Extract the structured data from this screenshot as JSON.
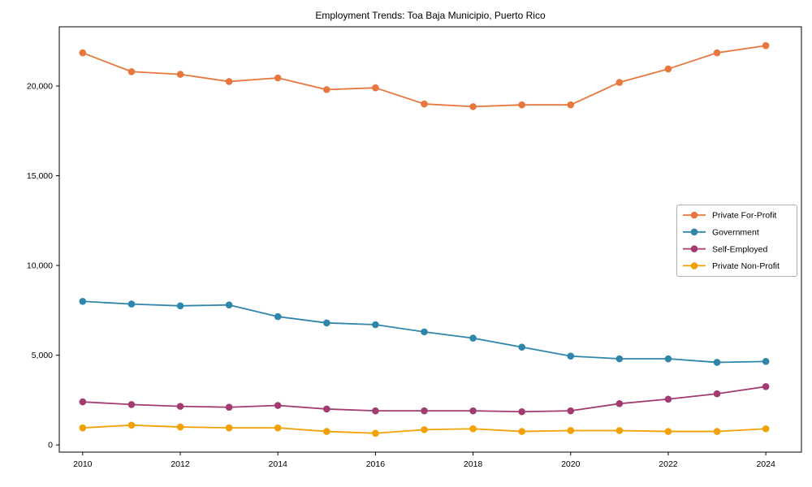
{
  "chart_data": {
    "type": "line",
    "title": "Employment Trends: Toa Baja Municipio, Puerto Rico",
    "xlabel": "",
    "ylabel": "",
    "x": [
      2010,
      2011,
      2012,
      2013,
      2014,
      2015,
      2016,
      2017,
      2018,
      2019,
      2020,
      2021,
      2022,
      2023,
      2024
    ],
    "series": [
      {
        "name": "Private For-Profit",
        "color": "#E8773E",
        "values": [
          21850,
          20800,
          20650,
          20250,
          20450,
          19800,
          19900,
          19000,
          18850,
          18950,
          18950,
          20200,
          20950,
          21850,
          22250
        ]
      },
      {
        "name": "Government",
        "color": "#2E86AB",
        "values": [
          8000,
          7850,
          7750,
          7800,
          7150,
          6800,
          6700,
          6300,
          5950,
          5450,
          4950,
          4800,
          4800,
          4600,
          4650
        ]
      },
      {
        "name": "Self-Employed",
        "color": "#A23B72",
        "values": [
          2400,
          2250,
          2150,
          2100,
          2200,
          2000,
          1900,
          1900,
          1900,
          1850,
          1900,
          2300,
          2550,
          2850,
          3250
        ]
      },
      {
        "name": "Private Non-Profit",
        "color": "#F2A104",
        "values": [
          950,
          1100,
          1000,
          950,
          950,
          750,
          650,
          850,
          900,
          750,
          800,
          800,
          750,
          750,
          900
        ]
      }
    ],
    "xticks": [
      2010,
      2012,
      2014,
      2016,
      2018,
      2020,
      2022,
      2024
    ],
    "xtick_labels": [
      "2010",
      "2012",
      "2014",
      "2016",
      "2018",
      "2020",
      "2022",
      "2024"
    ],
    "yticks": [
      0,
      5000,
      10000,
      15000,
      20000
    ],
    "ytick_labels": [
      "0",
      "5,000",
      "10,000",
      "15,000",
      "20,000"
    ],
    "xlim": [
      2009.52,
      2024.73
    ],
    "ylim": [
      -400,
      23300
    ],
    "grid": false,
    "marker": "circle",
    "legend_position": "center-right"
  }
}
